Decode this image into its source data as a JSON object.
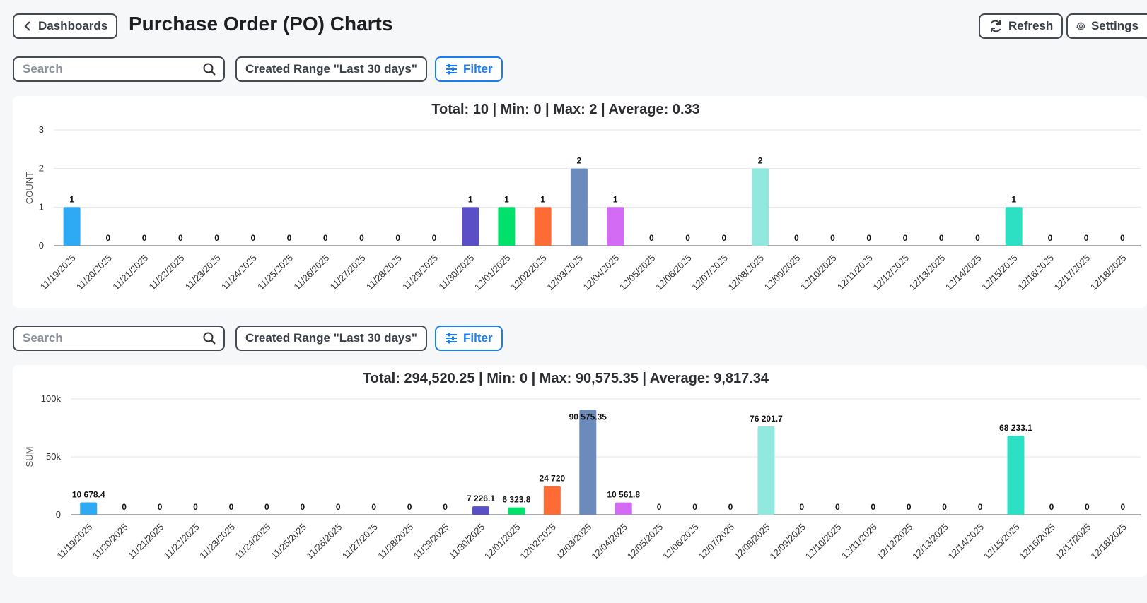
{
  "header": {
    "back_label": "Dashboards",
    "title": "Purchase Order (PO) Charts",
    "refresh_label": "Refresh",
    "settings_label": "Settings"
  },
  "toolbar": {
    "search_placeholder": "Search",
    "range_label": "Created Range \"Last 30 days\"",
    "filter_label": "Filter"
  },
  "chart_data": [
    {
      "type": "bar",
      "summary": "Total: 10 | Min: 0 | Max: 2 | Average: 0.33",
      "ylabel": "COUNT",
      "ylim": [
        0,
        3
      ],
      "yticks": [
        "0",
        "1",
        "2",
        "3"
      ],
      "categories": [
        "11/19/2025",
        "11/20/2025",
        "11/21/2025",
        "11/22/2025",
        "11/23/2025",
        "11/24/2025",
        "11/25/2025",
        "11/26/2025",
        "11/27/2025",
        "11/28/2025",
        "11/29/2025",
        "11/30/2025",
        "12/01/2025",
        "12/02/2025",
        "12/03/2025",
        "12/04/2025",
        "12/05/2025",
        "12/06/2025",
        "12/07/2025",
        "12/08/2025",
        "12/09/2025",
        "12/10/2025",
        "12/11/2025",
        "12/12/2025",
        "12/13/2025",
        "12/14/2025",
        "12/15/2025",
        "12/16/2025",
        "12/17/2025",
        "12/18/2025"
      ],
      "values": [
        1,
        0,
        0,
        0,
        0,
        0,
        0,
        0,
        0,
        0,
        0,
        1,
        1,
        1,
        2,
        1,
        0,
        0,
        0,
        2,
        0,
        0,
        0,
        0,
        0,
        0,
        1,
        0,
        0,
        0
      ],
      "labels": [
        "1",
        "0",
        "0",
        "0",
        "0",
        "0",
        "0",
        "0",
        "0",
        "0",
        "0",
        "1",
        "1",
        "1",
        "2",
        "1",
        "0",
        "0",
        "0",
        "2",
        "0",
        "0",
        "0",
        "0",
        "0",
        "0",
        "1",
        "0",
        "0",
        "0"
      ],
      "grid": true,
      "legend": "none"
    },
    {
      "type": "bar",
      "summary": "Total: 294,520.25 | Min: 0 | Max: 90,575.35 | Average: 9,817.34",
      "ylabel": "SUM",
      "ylim": [
        0,
        100000
      ],
      "yticks": [
        "0",
        "50k",
        "100k"
      ],
      "categories": [
        "11/19/2025",
        "11/20/2025",
        "11/21/2025",
        "11/22/2025",
        "11/23/2025",
        "11/24/2025",
        "11/25/2025",
        "11/26/2025",
        "11/27/2025",
        "11/28/2025",
        "11/29/2025",
        "11/30/2025",
        "12/01/2025",
        "12/02/2025",
        "12/03/2025",
        "12/04/2025",
        "12/05/2025",
        "12/06/2025",
        "12/07/2025",
        "12/08/2025",
        "12/09/2025",
        "12/10/2025",
        "12/11/2025",
        "12/12/2025",
        "12/13/2025",
        "12/14/2025",
        "12/15/2025",
        "12/16/2025",
        "12/17/2025",
        "12/18/2025"
      ],
      "values": [
        10678.4,
        0,
        0,
        0,
        0,
        0,
        0,
        0,
        0,
        0,
        0,
        7226.1,
        6323.8,
        24720,
        90575.35,
        10561.8,
        0,
        0,
        0,
        76201.7,
        0,
        0,
        0,
        0,
        0,
        0,
        68233.1,
        0,
        0,
        0
      ],
      "labels": [
        "10 678.4",
        "0",
        "0",
        "0",
        "0",
        "0",
        "0",
        "0",
        "0",
        "0",
        "0",
        "7 226.1",
        "6 323.8",
        "24 720",
        "90 575.35",
        "10 561.8",
        "0",
        "0",
        "0",
        "76 201.7",
        "0",
        "0",
        "0",
        "0",
        "0",
        "0",
        "68 233.1",
        "0",
        "0",
        "0"
      ],
      "grid": true,
      "legend": "none"
    }
  ],
  "colors": {
    "11/19/2025": "#2eaaf5",
    "11/30/2025": "#5a4fc7",
    "12/01/2025": "#00e06a",
    "12/02/2025": "#ff6b35",
    "12/03/2025": "#6b8bbd",
    "12/04/2025": "#d36bf5",
    "12/08/2025": "#90e8df",
    "12/15/2025": "#2de0c4",
    "accent": "#1a7df0"
  }
}
